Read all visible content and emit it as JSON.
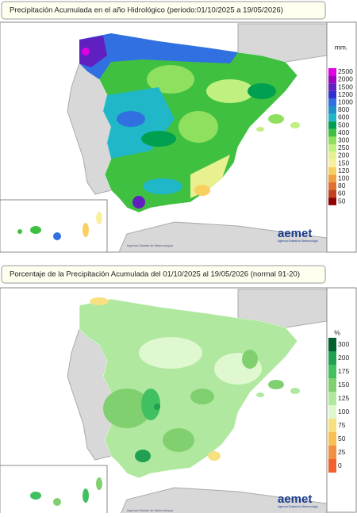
{
  "panels": [
    {
      "title": "Precipitación Acumulada en el año Hidrológico  (periodo:01/10/2025 a 19/05/2026)",
      "unit": "mm.",
      "legend": [
        {
          "label": 2500,
          "color": "#e000e0"
        },
        {
          "label": 2000,
          "color": "#a000c0"
        },
        {
          "label": 1500,
          "color": "#6020c0"
        },
        {
          "label": 1200,
          "color": "#3030d0"
        },
        {
          "label": 1000,
          "color": "#3070e0"
        },
        {
          "label": 800,
          "color": "#2090c8"
        },
        {
          "label": 600,
          "color": "#20b8c8"
        },
        {
          "label": 500,
          "color": "#00a050"
        },
        {
          "label": 400,
          "color": "#40c040"
        },
        {
          "label": 300,
          "color": "#90e060"
        },
        {
          "label": 250,
          "color": "#c0f080"
        },
        {
          "label": 200,
          "color": "#e8f090"
        },
        {
          "label": 150,
          "color": "#f8f0a0"
        },
        {
          "label": 120,
          "color": "#f8d060"
        },
        {
          "label": 100,
          "color": "#f0a040"
        },
        {
          "label": 80,
          "color": "#e07030"
        },
        {
          "label": 60,
          "color": "#c04020"
        },
        {
          "label": 50,
          "color": "#900000"
        }
      ],
      "logo": "aemet",
      "logo_caption": "Agencia Estatal de Meteorología",
      "credit": "Agencia Estatal de Meteorología"
    },
    {
      "title": "Porcentaje de la Precipitación Acumulada del 01/10/2025 al 19/05/2026 (normal 91-20)",
      "unit": "%",
      "legend": [
        {
          "label": 300,
          "color": "#006030"
        },
        {
          "label": 200,
          "color": "#20a050"
        },
        {
          "label": 175,
          "color": "#40c060"
        },
        {
          "label": 150,
          "color": "#80d070"
        },
        {
          "label": 125,
          "color": "#b0e8a0"
        },
        {
          "label": 100,
          "color": "#e0f8d0"
        },
        {
          "label": 75,
          "color": "#f8e080"
        },
        {
          "label": 50,
          "color": "#f8c050"
        },
        {
          "label": 25,
          "color": "#f09040"
        },
        {
          "label": 0,
          "color": "#f06030"
        }
      ],
      "logo": "aemet",
      "logo_caption": "Agencia Estatal de Meteorología",
      "credit": "Agencia Estatal de Meteorología"
    }
  ]
}
